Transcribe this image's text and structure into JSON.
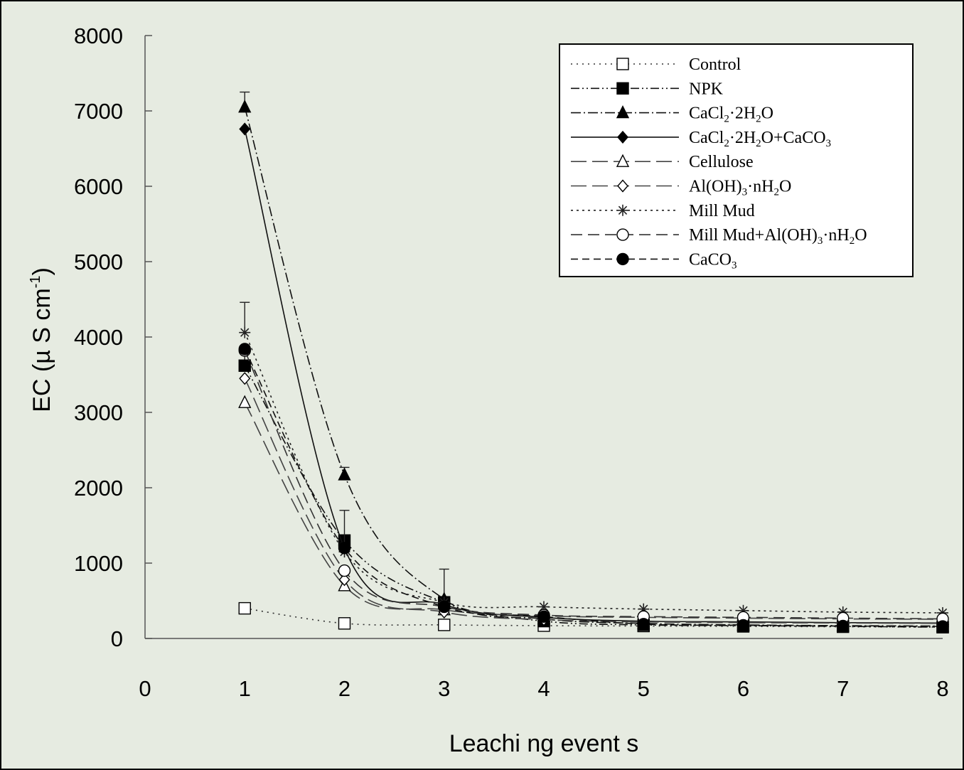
{
  "chart_data": {
    "type": "line",
    "title": "",
    "xlabel": "Leachi ng event s",
    "ylabel_parts": {
      "main": "EC (µ S cm",
      "sup": "-1",
      "close": ")"
    },
    "xlim": [
      0,
      8
    ],
    "ylim": [
      0,
      8000
    ],
    "x_ticks": [
      0,
      1,
      2,
      3,
      4,
      5,
      6,
      7,
      8
    ],
    "y_ticks": [
      0,
      1000,
      2000,
      3000,
      4000,
      5000,
      6000,
      7000,
      8000
    ],
    "grid": false,
    "legend_position": "top-right",
    "x": [
      1,
      2,
      3,
      4,
      5,
      6,
      7,
      8
    ],
    "series": [
      {
        "name": "Control",
        "values": [
          400,
          200,
          180,
          170,
          165,
          160,
          155,
          150
        ],
        "marker": "square-open",
        "dash": "2,6",
        "color": "#333333",
        "error": []
      },
      {
        "name": "NPK",
        "values": [
          3620,
          1300,
          480,
          230,
          180,
          170,
          160,
          150
        ],
        "marker": "square-filled",
        "dash": "12,4,2,4,2,4",
        "color": "#111111",
        "error": [
          {
            "i": 0,
            "v": 250
          }
        ]
      },
      {
        "name": "CaCl2·2H2O",
        "values": [
          7050,
          2170,
          520,
          260,
          200,
          180,
          170,
          165
        ],
        "marker": "triangle-filled",
        "dash": "14,4,2,4",
        "color": "#111111",
        "error": [
          {
            "i": 0,
            "v": 200
          },
          {
            "i": 1,
            "v": 100
          },
          {
            "i": 2,
            "v": 400
          }
        ]
      },
      {
        "name": "CaCl2·2H2O+CaCO3",
        "values": [
          6760,
          1200,
          450,
          280,
          230,
          220,
          210,
          205
        ],
        "marker": "diamond-filled",
        "dash": "",
        "color": "#111111",
        "error": []
      },
      {
        "name": "Cellulose",
        "values": [
          3130,
          700,
          380,
          300,
          280,
          270,
          260,
          255
        ],
        "marker": "triangle-open",
        "dash": "22,8",
        "color": "#444444",
        "error": []
      },
      {
        "name": "Al(OH)3·nH2O",
        "values": [
          3450,
          780,
          350,
          250,
          220,
          210,
          205,
          200
        ],
        "marker": "diamond-open",
        "dash": "22,8",
        "color": "#444444",
        "error": []
      },
      {
        "name": "Mill Mud",
        "values": [
          4060,
          1150,
          480,
          420,
          390,
          370,
          350,
          340
        ],
        "marker": "star",
        "dash": "3,5",
        "color": "#222222",
        "error": [
          {
            "i": 0,
            "v": 400
          },
          {
            "i": 1,
            "v": 550
          }
        ]
      },
      {
        "name": "Mill Mud+Al(OH)3·nH2O",
        "values": [
          3820,
          900,
          420,
          310,
          290,
          280,
          270,
          260
        ],
        "marker": "circle-open",
        "dash": "16,8",
        "color": "#333333",
        "error": []
      },
      {
        "name": "CaCO3",
        "values": [
          3840,
          1200,
          420,
          290,
          190,
          175,
          165,
          160
        ],
        "marker": "circle-filled",
        "dash": "10,6",
        "color": "#111111",
        "error": []
      }
    ]
  },
  "legend_labels": [
    {
      "parts": [
        [
          "Control",
          ""
        ]
      ]
    },
    {
      "parts": [
        [
          "NPK",
          ""
        ]
      ]
    },
    {
      "parts": [
        [
          "CaCl",
          ""
        ],
        [
          "2",
          "sub"
        ],
        [
          "·2H",
          ""
        ],
        [
          "2",
          "sub"
        ],
        [
          "O",
          ""
        ]
      ]
    },
    {
      "parts": [
        [
          "CaCl",
          ""
        ],
        [
          "2",
          "sub"
        ],
        [
          "·2H",
          ""
        ],
        [
          "2",
          "sub"
        ],
        [
          "O+CaCO",
          ""
        ],
        [
          "3",
          "sub"
        ]
      ]
    },
    {
      "parts": [
        [
          "Cellulose",
          ""
        ]
      ]
    },
    {
      "parts": [
        [
          "Al(OH)",
          ""
        ],
        [
          "3",
          "sub"
        ],
        [
          "·nH",
          ""
        ],
        [
          "2",
          "sub"
        ],
        [
          "O",
          ""
        ]
      ]
    },
    {
      "parts": [
        [
          "Mill Mud",
          ""
        ]
      ]
    },
    {
      "parts": [
        [
          "Mill Mud+Al(OH)",
          ""
        ],
        [
          "3",
          "sub"
        ],
        [
          "·nH",
          ""
        ],
        [
          "2",
          "sub"
        ],
        [
          "O",
          ""
        ]
      ]
    },
    {
      "parts": [
        [
          "CaCO",
          ""
        ],
        [
          "3",
          "sub"
        ]
      ]
    }
  ],
  "colors": {
    "background": "#e6ebe1",
    "axis": "#555555"
  }
}
